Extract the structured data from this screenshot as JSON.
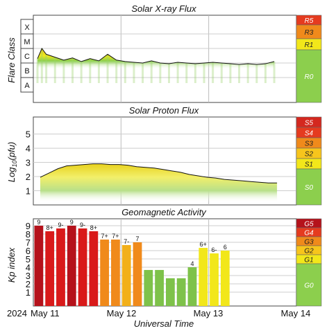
{
  "chart_data": [
    {
      "type": "area",
      "title": "Solar X-ray Flux",
      "ylabel": "Flare Class",
      "y_scale": "log",
      "y_ticks": [
        "X",
        "M",
        "C",
        "B",
        "A"
      ],
      "x_ticks": [
        "May 11",
        "May 12",
        "May 13",
        "May 14"
      ],
      "x": [
        0,
        0.05,
        0.1,
        0.2,
        0.3,
        0.4,
        0.5,
        0.6,
        0.7,
        0.8,
        0.9,
        1.0,
        1.1,
        1.2,
        1.3,
        1.4,
        1.5,
        1.6,
        1.7,
        1.8,
        1.9,
        2.0,
        2.1,
        2.2,
        2.3,
        2.4,
        2.5,
        2.6,
        2.7
      ],
      "values": [
        2.3,
        3.0,
        2.6,
        2.4,
        2.2,
        2.35,
        2.1,
        2.3,
        2.15,
        2.6,
        2.2,
        2.1,
        2.05,
        2.0,
        2.15,
        2.0,
        1.95,
        2.05,
        2.0,
        1.95,
        2.0,
        2.05,
        2.0,
        1.95,
        1.9,
        1.95,
        1.9,
        1.95,
        2.1
      ],
      "levels": [
        {
          "label": "R5",
          "color": "#e53b1f"
        },
        {
          "label": "R3",
          "color": "#f08a1b"
        },
        {
          "label": "R1",
          "color": "#f2e71a"
        },
        {
          "label": "R0",
          "color": "#8ccf4d"
        }
      ]
    },
    {
      "type": "area",
      "title": "Solar Proton Flux",
      "ylabel": "Log10(pfu)",
      "ylim": [
        0,
        6
      ],
      "y_ticks": [
        "5",
        "4",
        "3",
        "2",
        "1"
      ],
      "x_ticks": [
        "May 11",
        "May 12",
        "May 13",
        "May 14"
      ],
      "x": [
        0,
        0.1,
        0.2,
        0.3,
        0.4,
        0.5,
        0.6,
        0.7,
        0.8,
        0.9,
        1.0,
        1.1,
        1.2,
        1.3,
        1.4,
        1.5,
        1.6,
        1.7,
        1.8,
        1.9,
        2.0,
        2.1,
        2.2,
        2.3,
        2.4,
        2.5,
        2.6,
        2.7
      ],
      "values": [
        1.0,
        1.3,
        1.6,
        1.8,
        1.85,
        1.9,
        1.95,
        1.95,
        1.9,
        1.9,
        1.85,
        1.75,
        1.7,
        1.65,
        1.55,
        1.45,
        1.35,
        1.2,
        1.1,
        1.0,
        0.95,
        0.85,
        0.8,
        0.75,
        0.7,
        0.65,
        0.6,
        0.6
      ],
      "levels": [
        {
          "label": "S5",
          "color": "#d4281f"
        },
        {
          "label": "S4",
          "color": "#e53b1f"
        },
        {
          "label": "S3",
          "color": "#f08a1b"
        },
        {
          "label": "S2",
          "color": "#f7c51c"
        },
        {
          "label": "S1",
          "color": "#f2e71a"
        },
        {
          "label": "S0",
          "color": "#8ccf4d"
        }
      ]
    },
    {
      "type": "bar",
      "title": "Geomagnetic Activity",
      "ylabel": "Kp index",
      "ylim": [
        0,
        9
      ],
      "y_ticks": [
        "9",
        "8",
        "7",
        "6",
        "5",
        "4",
        "3",
        "2",
        "1"
      ],
      "x_ticks": [
        "May 11",
        "May 12",
        "May 13",
        "May 14"
      ],
      "values": [
        9,
        8.33,
        8.67,
        9,
        8.67,
        8.33,
        7.33,
        7.33,
        6.67,
        7,
        3.67,
        3.67,
        2.67,
        2.67,
        4,
        6.33,
        5.67,
        6
      ],
      "labels": [
        "9",
        "8+",
        "9-",
        "9",
        "9-",
        "8+",
        "7+",
        "7+",
        "7-",
        "7",
        "",
        "",
        "",
        "",
        "4",
        "6+",
        "6-",
        "6"
      ],
      "colors": [
        "#b5121b",
        "#d91a1a",
        "#d91a1a",
        "#b5121b",
        "#d91a1a",
        "#d91a1a",
        "#f08a1b",
        "#f08a1b",
        "#f2b01a",
        "#f08a1b",
        "#7ec24a",
        "#7ec24a",
        "#7ec24a",
        "#7ec24a",
        "#7ec24a",
        "#f2e71a",
        "#f2e71a",
        "#f2e71a"
      ],
      "levels": [
        {
          "label": "G5",
          "color": "#b5121b"
        },
        {
          "label": "G4",
          "color": "#e53b1f"
        },
        {
          "label": "G3",
          "color": "#f08a1b"
        },
        {
          "label": "G2",
          "color": "#f7c51c"
        },
        {
          "label": "G1",
          "color": "#f2e71a"
        },
        {
          "label": "G0",
          "color": "#8ccf4d"
        }
      ]
    }
  ],
  "x_axis": {
    "year": "2024",
    "ticks": [
      "May 11",
      "May 12",
      "May 13",
      "May 14"
    ],
    "label": "Universal Time"
  }
}
